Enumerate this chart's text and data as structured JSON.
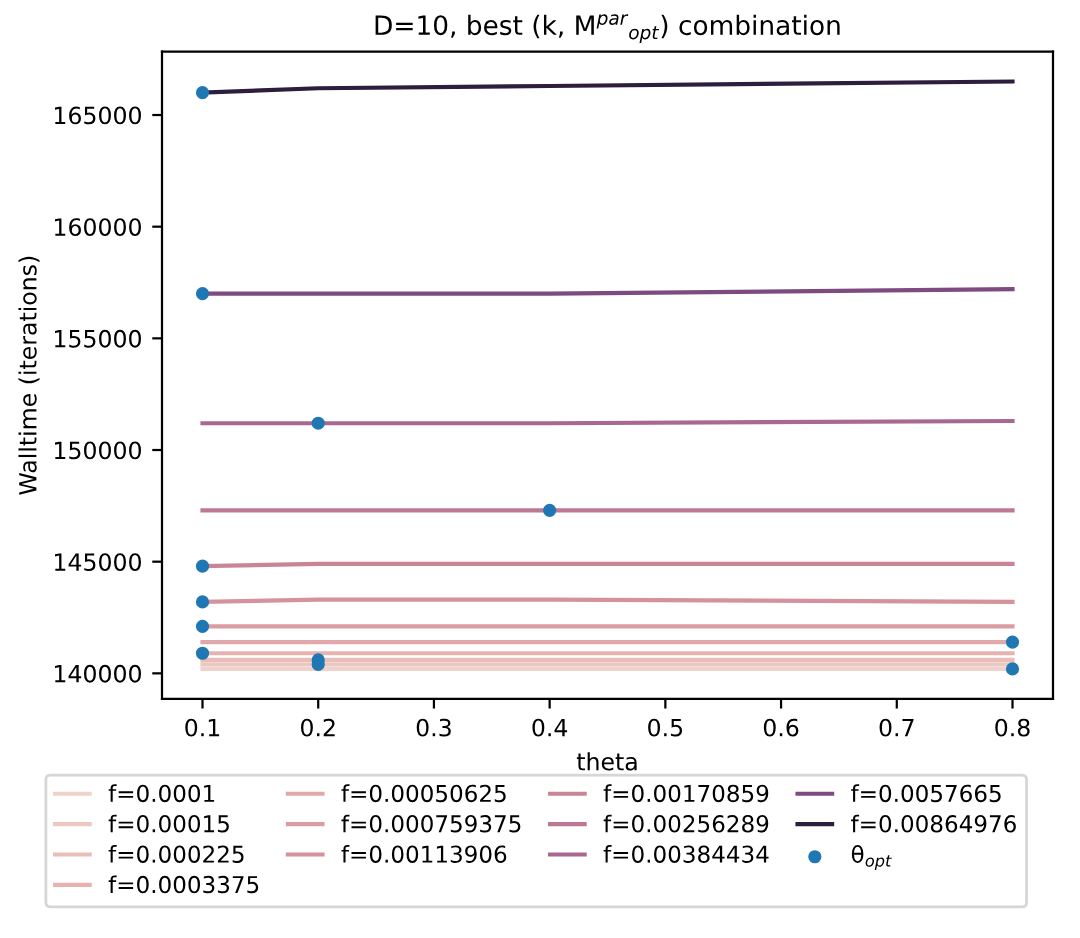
{
  "chart_data": {
    "type": "line",
    "title": "D=10, best (k, M$^{par}$$_{opt}$) combination",
    "xlabel": "theta",
    "ylabel": "Walltime (iterations)",
    "x": [
      0.1,
      0.2,
      0.4,
      0.8
    ],
    "series": [
      {
        "name": "f=0.0001",
        "color": "#efd2cb",
        "values": [
          140200,
          140200,
          140200,
          140200
        ]
      },
      {
        "name": "f=0.00015",
        "color": "#ecc8c2",
        "values": [
          140400,
          140400,
          140400,
          140400
        ]
      },
      {
        "name": "f=0.000225",
        "color": "#e9beb9",
        "values": [
          140600,
          140600,
          140600,
          140600
        ]
      },
      {
        "name": "f=0.0003375",
        "color": "#e5b3b0",
        "values": [
          140900,
          140900,
          140900,
          140900
        ]
      },
      {
        "name": "f=0.00050625",
        "color": "#e0a8a8",
        "values": [
          141400,
          141400,
          141400,
          141400
        ]
      },
      {
        "name": "f=0.000759375",
        "color": "#da9da2",
        "values": [
          142100,
          142100,
          142100,
          142100
        ]
      },
      {
        "name": "f=0.00113906",
        "color": "#d3929c",
        "values": [
          143200,
          143300,
          143300,
          143200
        ]
      },
      {
        "name": "f=0.00170859",
        "color": "#c98596",
        "values": [
          144800,
          144900,
          144900,
          144900
        ]
      },
      {
        "name": "f=0.00256289",
        "color": "#bd7893",
        "values": [
          147300,
          147300,
          147300,
          147300
        ]
      },
      {
        "name": "f=0.00384434",
        "color": "#a96890",
        "values": [
          151200,
          151200,
          151200,
          151300
        ]
      },
      {
        "name": "f=0.0057665",
        "color": "#7d4b80",
        "values": [
          157000,
          157000,
          157000,
          157200
        ]
      },
      {
        "name": "f=0.00864976",
        "color": "#2d1e3e",
        "values": [
          166000,
          166200,
          166300,
          166500
        ]
      },
      {
        "name": "θ$_{opt}$",
        "type": "scatter",
        "color": "#1f77b4",
        "marker": "circle",
        "x": [
          0.1,
          0.1,
          0.2,
          0.4,
          0.1,
          0.1,
          0.1,
          0.8,
          0.1,
          0.2,
          0.2,
          0.8
        ],
        "values": [
          166000,
          157000,
          151200,
          147300,
          144800,
          143200,
          142100,
          141400,
          140900,
          140600,
          140400,
          140200
        ]
      }
    ],
    "xlim": [
      0.065,
      0.835
    ],
    "xticks": [
      0.1,
      0.2,
      0.3,
      0.4,
      0.5,
      0.6,
      0.7,
      0.8
    ],
    "ylim": [
      138860,
      167840
    ],
    "yticks": [
      140000,
      145000,
      150000,
      155000,
      160000,
      165000
    ],
    "legend": "bottom",
    "grid": false
  }
}
